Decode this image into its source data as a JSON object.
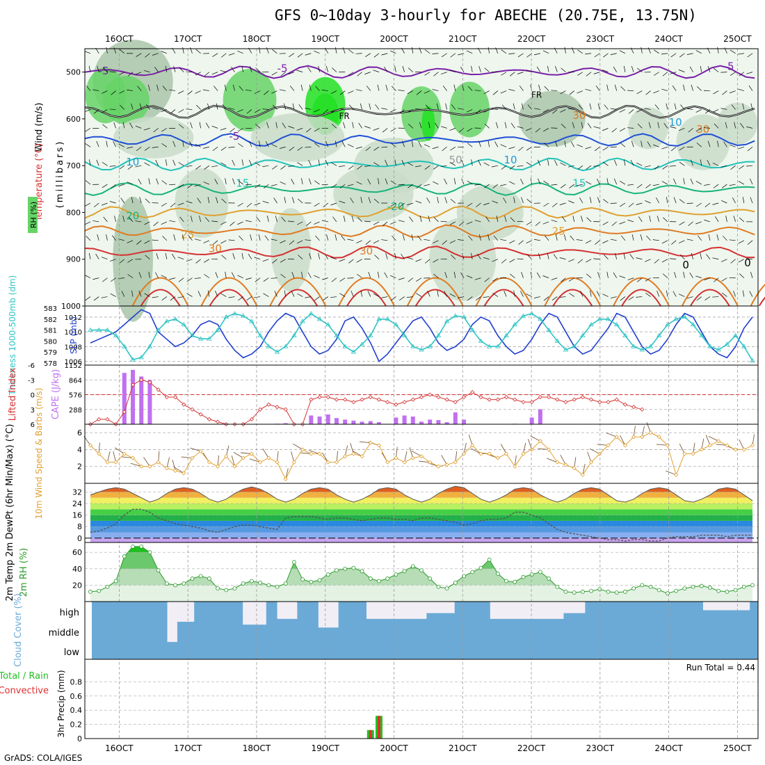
{
  "page": {
    "title": "GFS 0~10day 3-hourly for ABECHE (20.75E, 13.75N)",
    "credit": "GrADS: COLA/IGES"
  },
  "colors": {
    "temp_isotherms": [
      "#7a1fa8",
      "#1f4fd6",
      "#1f9ad6",
      "#21c2b8",
      "#16b37a",
      "#e0a030",
      "#e07a20",
      "#d43030"
    ],
    "rh_fill": [
      "#eef6ee",
      "#c9dcc9",
      "#a9c6a9",
      "#66d466",
      "#22e022"
    ],
    "slp_line": "#1f3fd0",
    "thickness_line": "#2ec4c4",
    "lifted_index_line": "#d43030",
    "cape_bar": "#c070f0",
    "wind_speed_line": "#e0a030",
    "wind_barb": "#7a5a3a",
    "temp_fill_max": "#b00000",
    "dewpoint_line": "#555555",
    "rh_area": "#2a9a2a",
    "cloud_fill": "#6baad6",
    "precip_total": "#22c022",
    "precip_convective": "#e03030"
  },
  "chart_data": [
    {
      "panel": "upper-air",
      "type": "heatmap",
      "title": "",
      "ylabel": "(millibars)",
      "side_labels": [
        "Temperature (°C)",
        "Wind (m/s)",
        "RH (%)"
      ],
      "x": [
        "16OCT",
        "17OCT",
        "18OCT",
        "19OCT",
        "20OCT",
        "21OCT",
        "22OCT",
        "23OCT",
        "24OCT",
        "25OCT"
      ],
      "x_range_days": [
        15.5,
        25.3
      ],
      "y_ticks": [
        500,
        600,
        700,
        800,
        900,
        1000
      ],
      "ylim": [
        450,
        1000
      ],
      "isotherm_labels": [
        "-5",
        "-5",
        "-5",
        "FR",
        "FR",
        "-5",
        "10",
        "10",
        "15",
        "15",
        "-20",
        "20",
        "25",
        "25",
        "30",
        "30",
        "0",
        "0",
        "30",
        "10",
        "30",
        "50"
      ],
      "isotherms": [
        {
          "label": "-5",
          "level": 500
        },
        {
          "label": "-5",
          "level": 645
        },
        {
          "label": "0",
          "level": 585
        },
        {
          "label": "10",
          "level": 697
        },
        {
          "label": "15",
          "level": 750
        },
        {
          "label": "20",
          "level": 800
        },
        {
          "label": "25",
          "level": 840
        },
        {
          "label": "30",
          "level": 885
        }
      ]
    },
    {
      "panel": "slp-thickness",
      "type": "line",
      "title": "",
      "ylabel_left": "Thickness 1000-500mb (dm)",
      "ylabel_right": "SLP (mb)",
      "y_left_ticks": [
        578,
        579,
        580,
        581,
        582,
        583
      ],
      "y_right_ticks": [
        1006,
        1008,
        1010,
        1012
      ],
      "ylim_left": [
        577.8,
        583.2
      ],
      "ylim_right": [
        1005.5,
        1013.5
      ],
      "series": [
        {
          "name": "SLP",
          "axis": "right",
          "values": [
            1008.5,
            1009,
            1009.5,
            1010,
            1011,
            1012,
            1013,
            1012.5,
            1010,
            1009,
            1008,
            1008.5,
            1009.5,
            1011,
            1011.5,
            1011,
            1009,
            1007.5,
            1006.5,
            1007,
            1008,
            1010,
            1011.5,
            1012.5,
            1012,
            1010,
            1008,
            1007,
            1007.5,
            1009,
            1011.5,
            1012,
            1010.5,
            1008.5,
            1006,
            1007,
            1008.5,
            1010,
            1011.5,
            1012,
            1010.5,
            1008.5,
            1007.5,
            1008,
            1009,
            1011,
            1012,
            1011.5,
            1009.5,
            1008,
            1007,
            1007.5,
            1009,
            1011,
            1012.5,
            1012,
            1010,
            1008,
            1007,
            1007.5,
            1009,
            1010.5,
            1012.5,
            1012,
            1010,
            1008,
            1007,
            1007.5,
            1009,
            1011,
            1012.5,
            1012,
            1010,
            1008,
            1007,
            1006.5,
            1008,
            1010.5,
            1012
          ]
        },
        {
          "name": "Thickness",
          "axis": "left",
          "values": [
            581,
            581,
            581,
            580.5,
            579.5,
            578.3,
            578.5,
            579.5,
            581,
            581.8,
            582,
            581.5,
            580.5,
            580.2,
            580.2,
            581,
            582.2,
            582.5,
            582.3,
            581.8,
            580.5,
            579.5,
            579,
            579.5,
            580.5,
            581.8,
            582.5,
            582,
            581.5,
            580.5,
            579.5,
            579,
            579.7,
            580.5,
            582,
            582,
            581.5,
            580.5,
            579.5,
            579.2,
            579.5,
            580.5,
            581.8,
            582.3,
            582.2,
            581,
            580,
            579.5,
            579.5,
            580.5,
            581.5,
            582.3,
            582.5,
            582,
            581,
            580,
            579.2,
            579.5,
            580.5,
            581.5,
            582,
            582,
            581.5,
            580.5,
            579.5,
            579.2,
            579.5,
            580.5,
            581.5,
            582,
            582.2,
            581.5,
            580.5,
            579.5,
            579.2,
            579.7,
            580.5,
            579.5,
            578.2
          ]
        }
      ]
    },
    {
      "panel": "lifted-index-cape",
      "type": "bar",
      "title": "",
      "ylabel_left": "Lifted Index",
      "ylabel_right": "CAPE (J/kg)",
      "y_left_ticks": [
        "-6",
        "-3",
        "0",
        "3",
        "6"
      ],
      "y_right_ticks": [
        "1152",
        "864",
        "576",
        "288"
      ],
      "li_ylim": [
        6,
        -6
      ],
      "cape_ylim": [
        0,
        1152
      ],
      "series": [
        {
          "name": "CAPE",
          "values": [
            0,
            0,
            0,
            0,
            1000,
            1060,
            930,
            860,
            0,
            0,
            0,
            0,
            0,
            0,
            0,
            0,
            0,
            0,
            0,
            0,
            0,
            0,
            10,
            20,
            0,
            0,
            170,
            150,
            190,
            120,
            90,
            70,
            50,
            60,
            40,
            0,
            130,
            170,
            150,
            50,
            90,
            80,
            40,
            230,
            90,
            0,
            0,
            0,
            0,
            0,
            10,
            0,
            130,
            290,
            0,
            0,
            0,
            0,
            0,
            0,
            0,
            0,
            0,
            0,
            0,
            0,
            0,
            0,
            0,
            0,
            0,
            0,
            0,
            0,
            0,
            0,
            0,
            0,
            0
          ]
        },
        {
          "name": "Lifted Index",
          "values": [
            6,
            5,
            5,
            6,
            3.5,
            -2,
            -3,
            -2.5,
            -1,
            0.5,
            0.5,
            2,
            3,
            4,
            5,
            5.5,
            6,
            6,
            6,
            5,
            3,
            2,
            2.5,
            3,
            6,
            6,
            1,
            0.5,
            0.5,
            1,
            1,
            1.5,
            1,
            0.5,
            1,
            1.5,
            2,
            1.5,
            1,
            0.5,
            0,
            0.5,
            1,
            1.5,
            0.5,
            -0.5,
            0.5,
            1,
            1,
            0.5,
            1,
            1.5,
            1.5,
            0.5,
            0.5,
            1,
            1.5,
            1,
            0.5,
            1,
            1.5,
            1.5,
            1,
            2,
            2.5,
            3,
            2.5,
            1.5,
            1,
            0.5,
            1,
            2,
            3,
            3.5,
            4,
            4.5,
            5,
            5.5,
            6
          ]
        }
      ]
    },
    {
      "panel": "10m-wind",
      "type": "line",
      "title": "",
      "ylabel": "10m Wind Speed & Barbs (m/s)",
      "y_ticks": [
        2,
        4,
        6
      ],
      "ylim": [
        0,
        7
      ],
      "series": [
        {
          "name": "Speed",
          "values": [
            4.5,
            3.5,
            2.5,
            2.5,
            3.5,
            3,
            2,
            2,
            2.5,
            1.8,
            1.5,
            1.2,
            3,
            3.8,
            2.5,
            2,
            3.2,
            2,
            3,
            3.5,
            2.5,
            3,
            2.5,
            0.5,
            2.5,
            4,
            3.5,
            3.5,
            2.5,
            2.5,
            3.2,
            3.5,
            3.2,
            4.8,
            4.5,
            2.5,
            3,
            2.5,
            3,
            3.2,
            2.5,
            2,
            2.2,
            2.5,
            3.5,
            4.5,
            3.5,
            3.5,
            3,
            3.5,
            2,
            3.5,
            4,
            5,
            4,
            2.5,
            2.2,
            1.8,
            1,
            2.5,
            3.5,
            4.5,
            5.5,
            4.5,
            5.5,
            5.5,
            6,
            5.5,
            4.5,
            1,
            3.5,
            3.5,
            4,
            4.5,
            5,
            4.5,
            4,
            4,
            4.5
          ]
        }
      ]
    },
    {
      "panel": "2m-temp",
      "type": "area",
      "title": "",
      "ylabel": "2m Temp 2m DewPt (6hr Min/Max) (°C)",
      "y_ticks": [
        0,
        8,
        16,
        24,
        32
      ],
      "ylim": [
        -3,
        38
      ],
      "series": [
        {
          "name": "Temp",
          "values": [
            30,
            32,
            34,
            35,
            34,
            31,
            28,
            25,
            27,
            31,
            34,
            35,
            34,
            31,
            27,
            25,
            27,
            31,
            34,
            35.5,
            34,
            31,
            27,
            25,
            27,
            31,
            34,
            35,
            34,
            30,
            27,
            25,
            27,
            30,
            34,
            35,
            34,
            30,
            27,
            25,
            27,
            31,
            34,
            36,
            35,
            31,
            27,
            25,
            27,
            30,
            34,
            35,
            34,
            30,
            27,
            25,
            27,
            31,
            34,
            35,
            34,
            30,
            26,
            25,
            27,
            31,
            34,
            35,
            34,
            30,
            26,
            25,
            27,
            30,
            34,
            35,
            34,
            30,
            26
          ]
        },
        {
          "name": "DewPt",
          "values": [
            4,
            5,
            7,
            10,
            16,
            20,
            20,
            18,
            14,
            12,
            10,
            9,
            8,
            7,
            5,
            4,
            6,
            8,
            9,
            9,
            8,
            7,
            6,
            14,
            15,
            15,
            15,
            14,
            13,
            14,
            14,
            13,
            12,
            13,
            14,
            14,
            13,
            13,
            12,
            14,
            14,
            13,
            12,
            11,
            9,
            10,
            12,
            13,
            13,
            14,
            18,
            18,
            16,
            14,
            10,
            6,
            4,
            3,
            2,
            1,
            0,
            -1,
            -1,
            -2,
            -1,
            -1,
            -2,
            -2,
            0,
            1,
            1,
            1,
            2,
            2,
            2,
            1,
            2,
            2,
            2
          ]
        }
      ]
    },
    {
      "panel": "2m-rh",
      "type": "area",
      "title": "",
      "ylabel": "2m RH (%)",
      "y_ticks": [
        20,
        40,
        60
      ],
      "ylim": [
        0,
        72
      ],
      "series": [
        {
          "name": "RH",
          "values": [
            12,
            13,
            18,
            25,
            55,
            67,
            67,
            60,
            38,
            22,
            20,
            22,
            28,
            31,
            28,
            16,
            14,
            16,
            22,
            25,
            23,
            20,
            18,
            22,
            48,
            27,
            24,
            26,
            33,
            38,
            40,
            41,
            37,
            28,
            25,
            28,
            33,
            37,
            43,
            38,
            28,
            18,
            16,
            23,
            31,
            36,
            41,
            51,
            34,
            25,
            24,
            30,
            33,
            36,
            28,
            18,
            12,
            11,
            12,
            13,
            15,
            12,
            11,
            12,
            16,
            20,
            18,
            14,
            10,
            13,
            16,
            18,
            19,
            17,
            13,
            12,
            14,
            18,
            20
          ]
        }
      ]
    },
    {
      "panel": "cloud-cover",
      "type": "heatmap",
      "title": "",
      "ylabel": "Cloud Cover (%)",
      "rows": [
        "high",
        "middle",
        "low"
      ]
    },
    {
      "panel": "precip",
      "type": "bar",
      "title": "",
      "ylabel": "3hr Precip (mm)",
      "side_labels": [
        "Total / Rain",
        "Convective"
      ],
      "annotation": "Run Total = 0.44",
      "y_ticks": [
        "0",
        "0.2",
        "0.4",
        "0.6",
        "0.8"
      ],
      "ylim": [
        0,
        1
      ],
      "series": [
        {
          "name": "Total",
          "values": [
            0,
            0,
            0,
            0,
            0,
            0,
            0,
            0,
            0,
            0,
            0,
            0,
            0,
            0,
            0,
            0,
            0,
            0,
            0,
            0,
            0,
            0,
            0,
            0,
            0,
            0,
            0,
            0,
            0,
            0,
            0,
            0,
            0,
            0.12,
            0.32,
            0,
            0,
            0,
            0,
            0,
            0,
            0,
            0,
            0,
            0,
            0,
            0,
            0,
            0,
            0,
            0,
            0,
            0,
            0,
            0,
            0,
            0,
            0,
            0,
            0,
            0,
            0,
            0,
            0,
            0,
            0,
            0,
            0,
            0,
            0,
            0,
            0,
            0,
            0,
            0,
            0,
            0,
            0,
            0
          ]
        },
        {
          "name": "Convective",
          "values": [
            0,
            0,
            0,
            0,
            0,
            0,
            0,
            0,
            0,
            0,
            0,
            0,
            0,
            0,
            0,
            0,
            0,
            0,
            0,
            0,
            0,
            0,
            0,
            0,
            0,
            0,
            0,
            0,
            0,
            0,
            0,
            0,
            0,
            0.12,
            0.32,
            0,
            0,
            0,
            0,
            0,
            0,
            0,
            0,
            0,
            0,
            0,
            0,
            0,
            0,
            0,
            0,
            0,
            0,
            0,
            0,
            0,
            0,
            0,
            0,
            0,
            0,
            0,
            0,
            0,
            0,
            0,
            0,
            0,
            0,
            0,
            0,
            0,
            0,
            0,
            0,
            0,
            0,
            0,
            0
          ]
        }
      ]
    }
  ]
}
